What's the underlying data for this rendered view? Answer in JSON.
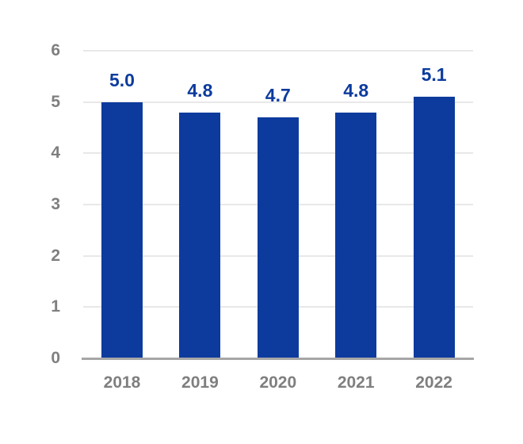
{
  "chart_data": {
    "type": "bar",
    "categories": [
      "2018",
      "2019",
      "2020",
      "2021",
      "2022"
    ],
    "values": [
      5.0,
      4.8,
      4.7,
      4.8,
      5.1
    ],
    "value_labels": [
      "5.0",
      "4.8",
      "4.7",
      "4.8",
      "5.1"
    ],
    "title": "",
    "xlabel": "",
    "ylabel": "",
    "ylim": [
      0,
      6
    ],
    "yticks": [
      0,
      1,
      2,
      3,
      4,
      5,
      6
    ],
    "grid": true,
    "legend": false,
    "data_labels_shown": true
  },
  "colors": {
    "bar": "#0C3B9D",
    "value_label": "#0C3B9D",
    "axis_label": "#7F7F7F",
    "gridline": "#E8E8E8",
    "baseline": "#A6A6A6",
    "background": "#FFFFFF"
  }
}
